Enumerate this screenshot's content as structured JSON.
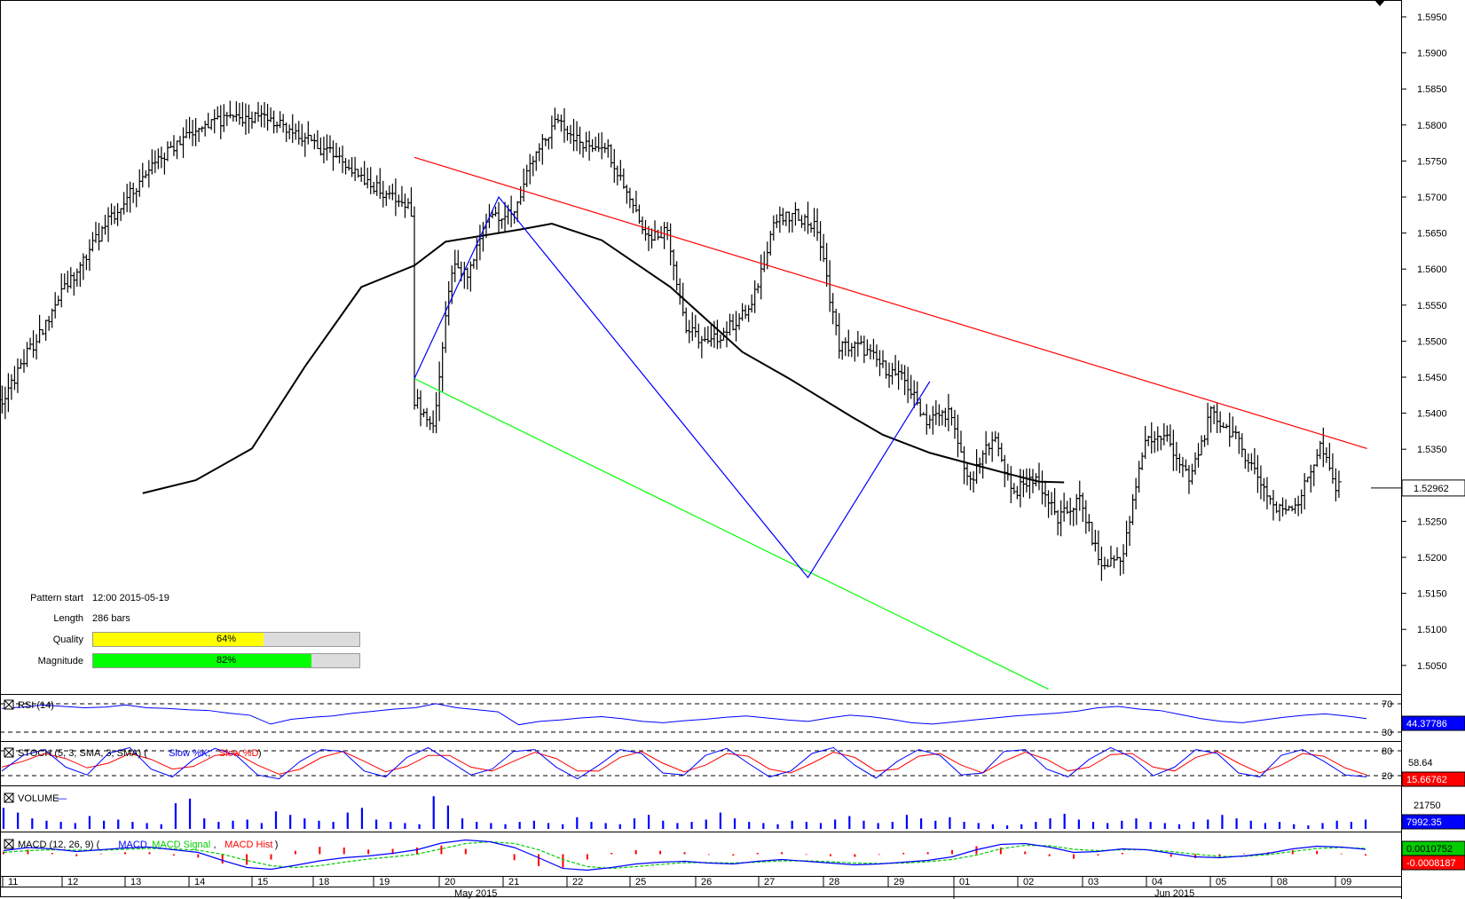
{
  "pattern_info": {
    "pattern_start_label": "Pattern start",
    "pattern_start_value": "12:00 2015-05-19",
    "length_label": "Length",
    "length_value": "286 bars",
    "quality_label": "Quality",
    "quality_value": "64%",
    "quality_fraction": 0.64,
    "quality_color": "#ffff00",
    "magnitude_label": "Magnitude",
    "magnitude_value": "82%",
    "magnitude_fraction": 0.82,
    "magnitude_color": "#00ff00"
  },
  "colors": {
    "resistance_line": "#ff0000",
    "support_line": "#00ff00",
    "zigzag": "#0000ff",
    "moving_average": "#000000",
    "price_bars": "#000000",
    "rsi": "#0000ff",
    "stoch_slow_k": "#0000ff",
    "stoch_slow_d": "#ff0000",
    "volume": "#0000ff",
    "macd": "#0000ff",
    "macd_signal": "#00cc00",
    "macd_hist": "#ff0000"
  },
  "chart_data": [
    {
      "type": "candlestick",
      "pane": "price",
      "y_ticks": [
        "1.5950",
        "1.5900",
        "1.5850",
        "1.5800",
        "1.5750",
        "1.5700",
        "1.5650",
        "1.5600",
        "1.5550",
        "1.5500",
        "1.5450",
        "1.5400",
        "1.5350",
        "1.5300",
        "1.5250",
        "1.5200",
        "1.5150",
        "1.5100",
        "1.5050"
      ],
      "ylim": [
        1.5005,
        1.5985
      ],
      "current_price_label": "1.52962",
      "current_price": 1.52962,
      "x_day_labels": [
        "11",
        "12",
        "13",
        "14",
        "15",
        "18",
        "19",
        "20",
        "21",
        "22",
        "25",
        "26",
        "27",
        "28",
        "29",
        "01",
        "02",
        "03",
        "04",
        "05",
        "08",
        "09"
      ],
      "x_month_labels": [
        "May 2015",
        "Jun 2015"
      ],
      "close_path": [
        [
          0,
          1.542
        ],
        [
          6,
          1.538
        ],
        [
          12,
          1.56
        ],
        [
          17,
          1.559
        ],
        [
          24,
          1.568
        ],
        [
          31,
          1.5672
        ],
        [
          38,
          1.575
        ],
        [
          46,
          1.581
        ],
        [
          54,
          1.577
        ],
        [
          61,
          1.5775
        ],
        [
          68,
          1.5709
        ],
        [
          75,
          1.5645
        ],
        [
          81,
          1.5655
        ],
        [
          87,
          1.5517
        ],
        [
          94,
          1.5495
        ],
        [
          101,
          1.552
        ],
        [
          108,
          1.5547
        ],
        [
          115,
          1.5665
        ],
        [
          123,
          1.5675
        ],
        [
          129,
          1.5655
        ],
        [
          136,
          1.5493
        ],
        [
          143,
          1.5492
        ],
        [
          150,
          1.5465
        ],
        [
          157,
          1.5445
        ],
        [
          164,
          1.539
        ],
        [
          171,
          1.5402
        ],
        [
          178,
          1.53
        ],
        [
          185,
          1.537
        ],
        [
          192,
          1.529
        ],
        [
          199,
          1.5312
        ],
        [
          206,
          1.5252
        ],
        [
          213,
          1.528
        ],
        [
          220,
          1.5186
        ],
        [
          227,
          1.5205
        ],
        [
          234,
          1.5365
        ],
        [
          241,
          1.5366
        ],
        [
          248,
          1.5305
        ],
        [
          255,
          1.5399
        ],
        [
          262,
          1.5372
        ],
        [
          269,
          1.5321
        ],
        [
          276,
          1.5265
        ],
        [
          283,
          1.5277
        ],
        [
          290,
          1.5355
        ],
        [
          295,
          1.5296
        ]
      ],
      "trend_lines": {
        "resistance": [
          [
            0,
            1.5755
          ],
          [
            305,
            1.5351
          ]
        ],
        "support": [
          [
            0,
            1.5448
          ],
          [
            203,
            1.5017
          ]
        ]
      },
      "zigzag": [
        [
          0,
          1.5448
        ],
        [
          27,
          1.57
        ],
        [
          126,
          1.5172
        ],
        [
          165,
          1.5444
        ]
      ],
      "moving_average": [
        [
          -87,
          1.5289
        ],
        [
          -70,
          1.5307
        ],
        [
          -52,
          1.5351
        ],
        [
          -35,
          1.5465
        ],
        [
          -17,
          1.5575
        ],
        [
          0,
          1.5605
        ],
        [
          10,
          1.5638
        ],
        [
          20,
          1.5645
        ],
        [
          34,
          1.5655
        ],
        [
          44,
          1.5663
        ],
        [
          60,
          1.564
        ],
        [
          82,
          1.5575
        ],
        [
          105,
          1.5485
        ],
        [
          120,
          1.5448
        ],
        [
          140,
          1.5395
        ],
        [
          150,
          1.537
        ],
        [
          165,
          1.5345
        ],
        [
          177,
          1.5331
        ],
        [
          190,
          1.5316
        ],
        [
          200,
          1.5305
        ],
        [
          208,
          1.5304
        ]
      ]
    },
    {
      "type": "line",
      "pane": "RSI",
      "title": "RSI (14)",
      "levels": [
        70,
        30
      ],
      "ylim": [
        15,
        75
      ],
      "current_label": "44.37786",
      "series": [
        {
          "name": "RSI",
          "values": [
            59,
            61,
            64,
            62,
            60,
            61,
            64,
            60,
            59,
            57,
            56,
            52,
            49,
            36,
            43,
            46,
            48,
            52,
            55,
            58,
            60,
            66,
            60,
            57,
            54,
            35,
            40,
            42,
            45,
            47,
            44,
            40,
            38,
            41,
            43,
            46,
            48,
            45,
            42,
            40,
            45,
            49,
            47,
            43,
            38,
            36,
            39,
            42,
            45,
            48,
            50,
            52,
            55,
            60,
            62,
            58,
            56,
            50,
            44,
            40,
            38,
            42,
            46,
            49,
            51,
            48,
            44
          ]
        }
      ]
    },
    {
      "type": "line",
      "pane": "STOCH",
      "title": "STOCH (5, 3, SMA, 3, SMA)",
      "legend": [
        "Slow %K",
        "Slow %D"
      ],
      "levels": [
        80,
        20
      ],
      "ylim": [
        0,
        100
      ],
      "value_labels": [
        "58.64",
        "15.66762"
      ],
      "series": [
        {
          "name": "Slow %K",
          "values": [
            30,
            70,
            85,
            40,
            20,
            75,
            90,
            35,
            15,
            60,
            88,
            70,
            20,
            10,
            55,
            85,
            80,
            30,
            15,
            65,
            90,
            55,
            20,
            35,
            80,
            85,
            40,
            10,
            45,
            85,
            75,
            25,
            20,
            70,
            88,
            50,
            15,
            30,
            75,
            90,
            45,
            12,
            55,
            85,
            70,
            20,
            25,
            80,
            85,
            35,
            15,
            60,
            90,
            65,
            18,
            40,
            85,
            75,
            25,
            15,
            70,
            85,
            55,
            20,
            15
          ]
        },
        {
          "name": "Slow %D",
          "values": [
            40,
            55,
            75,
            62,
            38,
            50,
            75,
            60,
            35,
            42,
            70,
            75,
            45,
            22,
            35,
            65,
            80,
            55,
            28,
            42,
            70,
            70,
            40,
            30,
            55,
            78,
            62,
            30,
            30,
            65,
            80,
            50,
            28,
            45,
            75,
            68,
            35,
            25,
            50,
            78,
            65,
            30,
            35,
            68,
            75,
            45,
            25,
            55,
            78,
            60,
            30,
            40,
            72,
            75,
            40,
            30,
            65,
            80,
            50,
            25,
            45,
            75,
            68,
            38,
            20
          ]
        }
      ]
    },
    {
      "type": "bar",
      "pane": "VOLUME",
      "title": "VOLUME",
      "ylim": [
        0,
        35000
      ],
      "tick_label": "21750",
      "current_label": "7992.35",
      "values": [
        18000,
        14000,
        9000,
        7000,
        6000,
        5000,
        11000,
        7000,
        8000,
        6000,
        5000,
        4000,
        22000,
        26000,
        9000,
        6000,
        7000,
        8000,
        5000,
        15000,
        12000,
        9000,
        7000,
        6000,
        14000,
        18000,
        8000,
        6000,
        5000,
        4000,
        28000,
        20000,
        9000,
        6000,
        5000,
        4000,
        6000,
        7000,
        5000,
        4000,
        10000,
        6000,
        5000,
        4000,
        9000,
        12000,
        7000,
        5000,
        6000,
        8000,
        14000,
        9000,
        6000,
        5000,
        4000,
        7000,
        6000,
        5000,
        8000,
        11000,
        7000,
        5000,
        6000,
        12000,
        9000,
        7000,
        10000,
        6000,
        5000,
        4000,
        3000,
        4000,
        6000,
        9000,
        13000,
        8000,
        6000,
        5000,
        7000,
        9000,
        6000,
        5000,
        4000,
        6000,
        8000,
        12000,
        9000,
        7000,
        5000,
        6000,
        4000,
        3000,
        5000,
        7000,
        6000,
        8000
      ]
    },
    {
      "type": "line",
      "pane": "MACD",
      "title": "MACD (12, 26, 9)",
      "legend": [
        "MACD",
        "MACD Signal",
        "MACD Hist"
      ],
      "ylim": [
        -0.0045,
        0.0045
      ],
      "value_labels": [
        "0.0010752",
        "-0.0008187"
      ],
      "series": [
        {
          "name": "MACD",
          "values": [
            0.0008,
            0.0015,
            0.0012,
            0.0006,
            0.001,
            0.0014,
            0.0016,
            0.001,
            0.0004,
            -0.0014,
            -0.003,
            -0.0034,
            -0.0025,
            -0.0015,
            -0.0008,
            -0.0004,
            0.0002,
            0.001,
            0.0025,
            0.0032,
            0.0028,
            0.0015,
            -0.0008,
            -0.0032,
            -0.0036,
            -0.003,
            -0.0022,
            -0.0018,
            -0.0016,
            -0.002,
            -0.0022,
            -0.0016,
            -0.0012,
            -0.0016,
            -0.002,
            -0.0024,
            -0.0022,
            -0.0018,
            -0.0014,
            -0.0006,
            0.001,
            0.0022,
            0.0024,
            0.0016,
            0.0004,
            0.0006,
            0.0012,
            0.001,
            0.0002,
            -0.0006,
            -0.0008,
            -0.0004,
            0.0002,
            0.0012,
            0.0018,
            0.0016,
            0.0011
          ]
        },
        {
          "name": "MACD Signal",
          "values": [
            0.0004,
            0.0008,
            0.001,
            0.0009,
            0.0009,
            0.0011,
            0.0013,
            0.0012,
            0.0009,
            0.0,
            -0.0014,
            -0.0026,
            -0.003,
            -0.0026,
            -0.0018,
            -0.0011,
            -0.0006,
            0.0,
            0.0012,
            0.0024,
            0.0028,
            0.0024,
            0.001,
            -0.0012,
            -0.0028,
            -0.0032,
            -0.0028,
            -0.0023,
            -0.0019,
            -0.0019,
            -0.002,
            -0.0018,
            -0.0015,
            -0.0015,
            -0.0017,
            -0.002,
            -0.0021,
            -0.002,
            -0.0017,
            -0.0012,
            -0.0002,
            0.0012,
            0.002,
            0.0019,
            0.0011,
            0.0008,
            0.001,
            0.001,
            0.0006,
            0.0,
            -0.0005,
            -0.0005,
            -0.0001,
            0.0006,
            0.0013,
            0.0015,
            0.0013
          ]
        }
      ]
    }
  ]
}
